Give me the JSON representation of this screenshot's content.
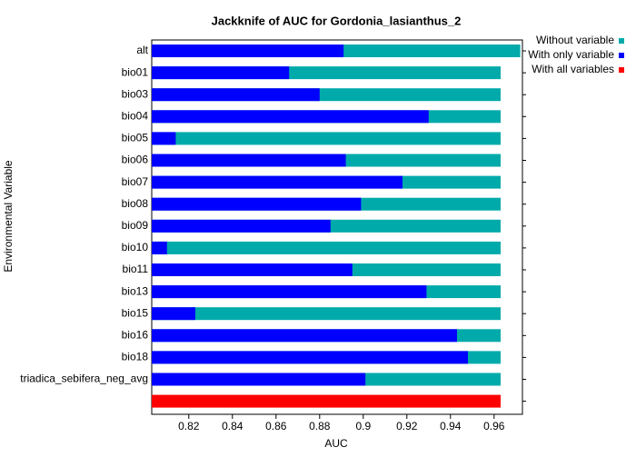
{
  "chart_data": {
    "type": "bar",
    "orientation": "horizontal",
    "title": "Jackknife of AUC for Gordonia_lasianthus_2",
    "x_label": "AUC",
    "y_label": "Environmental Variable",
    "categories": [
      "alt",
      "bio01",
      "bio03",
      "bio04",
      "bio05",
      "bio06",
      "bio07",
      "bio08",
      "bio09",
      "bio10",
      "bio11",
      "bio13",
      "bio15",
      "bio16",
      "bio18",
      "triadica_sebifera_neg_avg",
      null
    ],
    "series": [
      {
        "name": "Without variable",
        "color": "#00aaaa",
        "values": [
          0.972,
          0.963,
          0.963,
          0.963,
          0.963,
          0.963,
          0.963,
          0.963,
          0.963,
          0.963,
          0.963,
          0.963,
          0.963,
          0.963,
          0.963,
          0.963,
          null
        ]
      },
      {
        "name": "With only variable",
        "color": "#0000ff",
        "values": [
          0.891,
          0.866,
          0.88,
          0.93,
          0.814,
          0.892,
          0.918,
          0.899,
          0.885,
          0.81,
          0.895,
          0.929,
          0.823,
          0.943,
          0.948,
          0.901,
          null
        ]
      },
      {
        "name": "With all variables",
        "color": "#ff0000",
        "values": [
          null,
          null,
          null,
          null,
          null,
          null,
          null,
          null,
          null,
          null,
          null,
          null,
          null,
          null,
          null,
          null,
          0.963
        ]
      }
    ],
    "xlim": [
      0.803,
      0.973
    ],
    "xticks": [
      0.82,
      0.84,
      0.86,
      0.88,
      0.9,
      0.92,
      0.94,
      0.96
    ],
    "legend": "right"
  }
}
